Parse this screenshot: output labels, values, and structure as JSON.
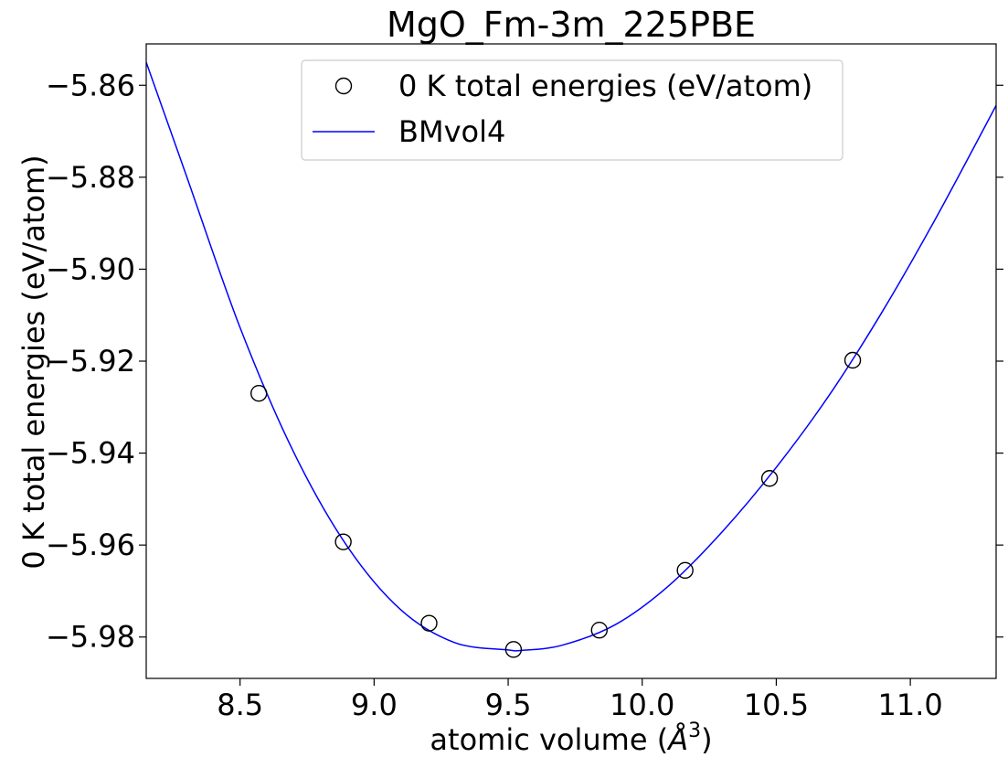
{
  "chart_data": {
    "type": "scatter",
    "title": "MgO_Fm-3m_225PBE",
    "xlabel": "atomic volume (",
    "xlabel_symbol": "Å",
    "xlabel_sup": "3",
    "xlabel_close": ")",
    "ylabel": "0 K total energies (eV/atom)",
    "xlim": [
      8.15,
      11.32
    ],
    "ylim": [
      -5.989,
      -5.851
    ],
    "xticks": [
      8.5,
      9.0,
      9.5,
      10.0,
      10.5,
      11.0
    ],
    "xtick_labels": [
      "8.5",
      "9.0",
      "9.5",
      "10.0",
      "10.5",
      "11.0"
    ],
    "yticks": [
      -5.86,
      -5.88,
      -5.9,
      -5.92,
      -5.94,
      -5.96,
      -5.98
    ],
    "ytick_labels": [
      "−5.86",
      "−5.88",
      "−5.90",
      "−5.92",
      "−5.94",
      "−5.96",
      "−5.98"
    ],
    "grid": false,
    "legend_position": "top-center",
    "series": [
      {
        "name": "0 K total energies (eV/atom)",
        "kind": "scatter",
        "marker": "open-circle",
        "color": "#000000",
        "x": [
          8.57,
          8.885,
          9.205,
          9.52,
          9.84,
          10.16,
          10.475,
          10.785
        ],
        "y": [
          -5.927,
          -5.9593,
          -5.977,
          -5.9827,
          -5.9785,
          -5.9655,
          -5.9455,
          -5.9198
        ]
      },
      {
        "name": "BMvol4",
        "kind": "line",
        "color": "#0000ff",
        "x": [
          8.15,
          8.3,
          8.5,
          8.7,
          8.9,
          9.1,
          9.3,
          9.5,
          9.55,
          9.7,
          9.9,
          10.1,
          10.3,
          10.5,
          10.7,
          10.9,
          11.1,
          11.32
        ],
        "y": [
          -5.855,
          -5.8797,
          -5.9127,
          -5.9398,
          -5.9603,
          -5.9741,
          -5.9812,
          -5.9828,
          -5.9829,
          -5.9818,
          -5.9773,
          -5.9688,
          -5.957,
          -5.9431,
          -5.9272,
          -5.9088,
          -5.8884,
          -5.8644
        ]
      }
    ]
  }
}
